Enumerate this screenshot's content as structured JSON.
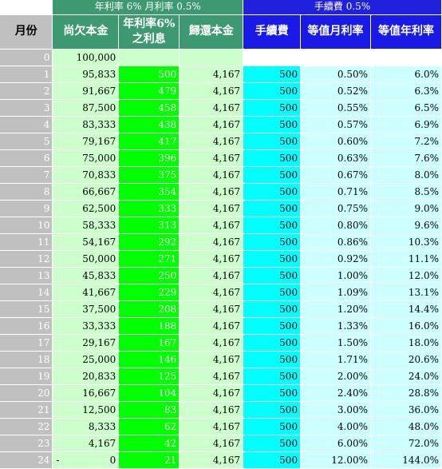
{
  "header": {
    "group_rate": "年利率 6% 月利率 0.5%",
    "group_fee": "手續費 0.5%",
    "col_month": "月份",
    "col_principal_owed": "尚欠本金",
    "col_interest_l1": "年利率6%",
    "col_interest_l2": "之利息",
    "col_repay": "歸還本金",
    "col_fee": "手續費",
    "col_monthly_eq": "等值月利率",
    "col_annual_eq": "等值年利率"
  },
  "row0": {
    "month": "0",
    "owed": "100,000"
  },
  "rows": [
    {
      "month": "1",
      "owed": "95,833",
      "interest": "500",
      "repay": "4,167",
      "fee": "500",
      "monthly": "0.50%",
      "annual": "6.0%"
    },
    {
      "month": "2",
      "owed": "91,667",
      "interest": "479",
      "repay": "4,167",
      "fee": "500",
      "monthly": "0.52%",
      "annual": "6.3%"
    },
    {
      "month": "3",
      "owed": "87,500",
      "interest": "458",
      "repay": "4,167",
      "fee": "500",
      "monthly": "0.55%",
      "annual": "6.5%"
    },
    {
      "month": "4",
      "owed": "83,333",
      "interest": "438",
      "repay": "4,167",
      "fee": "500",
      "monthly": "0.57%",
      "annual": "6.9%"
    },
    {
      "month": "5",
      "owed": "79,167",
      "interest": "417",
      "repay": "4,167",
      "fee": "500",
      "monthly": "0.60%",
      "annual": "7.2%"
    },
    {
      "month": "6",
      "owed": "75,000",
      "interest": "396",
      "repay": "4,167",
      "fee": "500",
      "monthly": "0.63%",
      "annual": "7.6%"
    },
    {
      "month": "7",
      "owed": "70,833",
      "interest": "375",
      "repay": "4,167",
      "fee": "500",
      "monthly": "0.67%",
      "annual": "8.0%"
    },
    {
      "month": "8",
      "owed": "66,667",
      "interest": "354",
      "repay": "4,167",
      "fee": "500",
      "monthly": "0.71%",
      "annual": "8.5%"
    },
    {
      "month": "9",
      "owed": "62,500",
      "interest": "333",
      "repay": "4,167",
      "fee": "500",
      "monthly": "0.75%",
      "annual": "9.0%"
    },
    {
      "month": "10",
      "owed": "58,333",
      "interest": "313",
      "repay": "4,167",
      "fee": "500",
      "monthly": "0.80%",
      "annual": "9.6%"
    },
    {
      "month": "11",
      "owed": "54,167",
      "interest": "292",
      "repay": "4,167",
      "fee": "500",
      "monthly": "0.86%",
      "annual": "10.3%"
    },
    {
      "month": "12",
      "owed": "50,000",
      "interest": "271",
      "repay": "4,167",
      "fee": "500",
      "monthly": "0.92%",
      "annual": "11.1%"
    },
    {
      "month": "13",
      "owed": "45,833",
      "interest": "250",
      "repay": "4,167",
      "fee": "500",
      "monthly": "1.00%",
      "annual": "12.0%"
    },
    {
      "month": "14",
      "owed": "41,667",
      "interest": "229",
      "repay": "4,167",
      "fee": "500",
      "monthly": "1.09%",
      "annual": "13.1%"
    },
    {
      "month": "15",
      "owed": "37,500",
      "interest": "208",
      "repay": "4,167",
      "fee": "500",
      "monthly": "1.20%",
      "annual": "14.4%"
    },
    {
      "month": "16",
      "owed": "33,333",
      "interest": "188",
      "repay": "4,167",
      "fee": "500",
      "monthly": "1.33%",
      "annual": "16.0%"
    },
    {
      "month": "17",
      "owed": "29,167",
      "interest": "167",
      "repay": "4,167",
      "fee": "500",
      "monthly": "1.50%",
      "annual": "18.0%"
    },
    {
      "month": "18",
      "owed": "25,000",
      "interest": "146",
      "repay": "4,167",
      "fee": "500",
      "monthly": "1.71%",
      "annual": "20.6%"
    },
    {
      "month": "19",
      "owed": "20,833",
      "interest": "125",
      "repay": "4,167",
      "fee": "500",
      "monthly": "2.00%",
      "annual": "24.0%"
    },
    {
      "month": "20",
      "owed": "16,667",
      "interest": "104",
      "repay": "4,167",
      "fee": "500",
      "monthly": "2.40%",
      "annual": "28.8%"
    },
    {
      "month": "21",
      "owed": "12,500",
      "interest": "83",
      "repay": "4,167",
      "fee": "500",
      "monthly": "3.00%",
      "annual": "36.0%"
    },
    {
      "month": "22",
      "owed": "8,333",
      "interest": "62",
      "repay": "4,167",
      "fee": "500",
      "monthly": "4.00%",
      "annual": "48.0%"
    },
    {
      "month": "23",
      "owed": "4,167",
      "interest": "42",
      "repay": "4,167",
      "fee": "500",
      "monthly": "6.00%",
      "annual": "72.0%"
    },
    {
      "month": "24",
      "owed": "0",
      "owed_prefix": "-",
      "interest": "21",
      "repay": "4,167",
      "fee": "500",
      "monthly": "12.00%",
      "annual": "144.0%"
    }
  ],
  "colors": {
    "title_green": "#3d9970",
    "title_blue": "#2020dd",
    "month_gray": "#c0c0c0",
    "light_green": "#ccffcc",
    "bright_green": "#00ff00",
    "cyan": "#00ffff",
    "pale_cyan": "#ccffff"
  }
}
